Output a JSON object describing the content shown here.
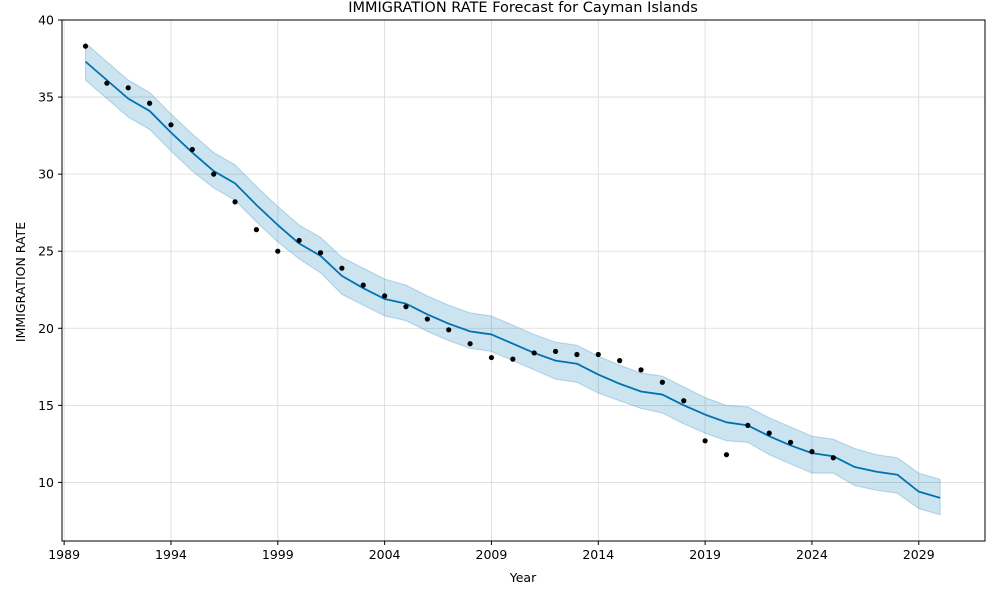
{
  "chart_data": {
    "type": "line",
    "title": "IMMIGRATION RATE Forecast for Cayman Islands",
    "xlabel": "Year",
    "ylabel": "IMMIGRATION RATE",
    "xlim": [
      1988.9,
      2032.1
    ],
    "ylim": [
      6.2,
      40.0
    ],
    "grid": true,
    "xticks": [
      1989,
      1994,
      1999,
      2004,
      2009,
      2014,
      2019,
      2024,
      2029
    ],
    "xtick_labels": [
      "1989",
      "1994",
      "1999",
      "2004",
      "2009",
      "2014",
      "2019",
      "2024",
      "2029"
    ],
    "yticks": [
      10,
      15,
      20,
      25,
      30,
      35,
      40
    ],
    "ytick_labels": [
      "10",
      "15",
      "20",
      "25",
      "30",
      "35",
      "40"
    ],
    "colors": {
      "forecast_line": "#0072b2",
      "interval_fill": "#0072b2",
      "observed": "#000000"
    },
    "observed": {
      "x": [
        1990,
        1991,
        1992,
        1993,
        1994,
        1995,
        1996,
        1997,
        1998,
        1999,
        2000,
        2001,
        2002,
        2003,
        2004,
        2005,
        2006,
        2007,
        2008,
        2009,
        2010,
        2011,
        2012,
        2013,
        2014,
        2015,
        2016,
        2017,
        2018,
        2019,
        2020,
        2021,
        2022,
        2023,
        2024,
        2025
      ],
      "y": [
        38.3,
        35.9,
        35.6,
        34.6,
        33.2,
        31.6,
        30.0,
        28.2,
        26.4,
        25.0,
        25.7,
        24.9,
        23.9,
        22.8,
        22.1,
        21.4,
        20.6,
        19.9,
        19.0,
        18.1,
        18.0,
        18.4,
        18.5,
        18.3,
        18.3,
        17.9,
        17.3,
        16.5,
        15.3,
        12.7,
        11.8,
        13.7,
        13.2,
        12.6,
        12.0,
        11.6
      ]
    },
    "forecast": {
      "x": [
        1990,
        1991,
        1992,
        1993,
        1994,
        1995,
        1996,
        1997,
        1998,
        1999,
        2000,
        2001,
        2002,
        2003,
        2004,
        2005,
        2006,
        2007,
        2008,
        2009,
        2010,
        2011,
        2012,
        2013,
        2014,
        2015,
        2016,
        2017,
        2018,
        2019,
        2020,
        2021,
        2022,
        2023,
        2024,
        2025,
        2026,
        2027,
        2028,
        2029,
        2030
      ],
      "yhat": [
        37.3,
        36.1,
        34.9,
        34.1,
        32.7,
        31.4,
        30.2,
        29.4,
        28.0,
        26.7,
        25.5,
        24.7,
        23.4,
        22.6,
        21.9,
        21.6,
        20.9,
        20.3,
        19.8,
        19.6,
        19.0,
        18.4,
        17.9,
        17.7,
        17.0,
        16.4,
        15.9,
        15.7,
        15.0,
        14.4,
        13.9,
        13.7,
        13.0,
        12.4,
        11.9,
        11.7,
        11.0,
        10.7,
        10.5,
        9.4,
        9.0
      ],
      "lower": [
        36.1,
        34.9,
        33.7,
        32.9,
        31.5,
        30.2,
        29.1,
        28.3,
        26.9,
        25.6,
        24.5,
        23.6,
        22.2,
        21.5,
        20.8,
        20.5,
        19.8,
        19.2,
        18.7,
        18.5,
        17.9,
        17.3,
        16.7,
        16.5,
        15.8,
        15.3,
        14.8,
        14.5,
        13.8,
        13.2,
        12.7,
        12.6,
        11.8,
        11.2,
        10.6,
        10.6,
        9.8,
        9.5,
        9.3,
        8.3,
        7.9
      ],
      "upper": [
        38.5,
        37.3,
        36.1,
        35.3,
        33.9,
        32.6,
        31.4,
        30.6,
        29.2,
        27.9,
        26.7,
        25.9,
        24.6,
        23.9,
        23.2,
        22.8,
        22.1,
        21.5,
        21.0,
        20.8,
        20.2,
        19.6,
        19.1,
        18.9,
        18.2,
        17.6,
        17.1,
        16.9,
        16.2,
        15.5,
        15.0,
        14.9,
        14.2,
        13.6,
        13.0,
        12.8,
        12.2,
        11.8,
        11.6,
        10.6,
        10.2
      ]
    }
  }
}
